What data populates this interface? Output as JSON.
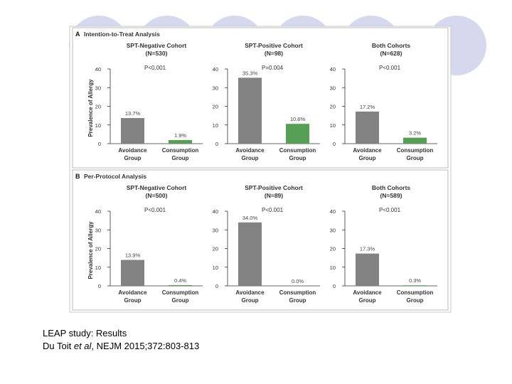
{
  "caption": {
    "line1": "LEAP study: Results",
    "line2_pre": "Du Toit ",
    "line2_italic": "et al",
    "line2_post": ", NEJM 2015;372:803-813"
  },
  "colors": {
    "avoidance": "#828282",
    "consumption": "#55a055",
    "background_circles": "#d6d8ee",
    "panel_border": "#bbbbbb"
  },
  "chart_data": [
    {
      "type": "bar",
      "panel_letter": "A",
      "panel_title": "Intention-to-Treat Analysis",
      "ylabel": "Prevalence of Allergy",
      "ylim": [
        0,
        40
      ],
      "yticks": [
        "0",
        "10",
        "20",
        "30",
        "40"
      ],
      "subplots": [
        {
          "title": "SPT-Negative Cohort",
          "n": "(N=530)",
          "p": "P<0.001",
          "categories": [
            "Avoidance Group",
            "Consumption Group"
          ],
          "values": [
            13.7,
            1.9
          ],
          "labels": [
            "13.7%",
            "1.9%"
          ]
        },
        {
          "title": "SPT-Positive Cohort",
          "n": "(N=98)",
          "p": "P=0.004",
          "categories": [
            "Avoidance Group",
            "Consumption Group"
          ],
          "values": [
            35.3,
            10.6
          ],
          "labels": [
            "35.3%",
            "10.6%"
          ]
        },
        {
          "title": "Both Cohorts",
          "n": "(N=628)",
          "p": "P<0.001",
          "categories": [
            "Avoidance Group",
            "Consumption Group"
          ],
          "values": [
            17.2,
            3.2
          ],
          "labels": [
            "17.2%",
            "3.2%"
          ]
        }
      ]
    },
    {
      "type": "bar",
      "panel_letter": "B",
      "panel_title": "Per-Protocol Analysis",
      "ylabel": "Prevalence of Allergy",
      "ylim": [
        0,
        40
      ],
      "yticks": [
        "0",
        "10",
        "20",
        "30",
        "40"
      ],
      "subplots": [
        {
          "title": "SPT-Negative Cohort",
          "n": "(N=500)",
          "p": "P<0.001",
          "categories": [
            "Avoidance Group",
            "Consumption Group"
          ],
          "values": [
            13.9,
            0.4
          ],
          "labels": [
            "13.9%",
            "0.4%"
          ]
        },
        {
          "title": "SPT-Positive Cohort",
          "n": "(N=89)",
          "p": "P<0.001",
          "categories": [
            "Avoidance Group",
            "Consumption Group"
          ],
          "values": [
            34.0,
            0.0
          ],
          "labels": [
            "34.0%",
            "0.0%"
          ]
        },
        {
          "title": "Both Cohorts",
          "n": "(N=589)",
          "p": "P<0.001",
          "categories": [
            "Avoidance Group",
            "Consumption Group"
          ],
          "values": [
            17.3,
            0.3
          ],
          "labels": [
            "17.3%",
            "0.3%"
          ]
        }
      ]
    }
  ]
}
